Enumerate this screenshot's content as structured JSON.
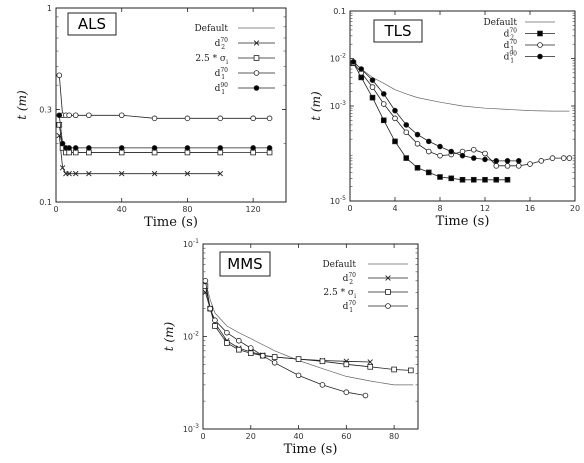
{
  "chart_data": [
    {
      "type": "line",
      "title": "ALS",
      "xlabel": "Time (s)",
      "ylabel": "t (m)",
      "yscale": "log",
      "xlim": [
        0,
        140
      ],
      "ylim": [
        0.1,
        1
      ],
      "xticks": [
        "0",
        "40",
        "80",
        "120"
      ],
      "yticks": [
        "0.1",
        "0.3",
        "1"
      ],
      "legend_position": "top-right",
      "series": [
        {
          "name": "Default",
          "marker": "none",
          "x": [
            2,
            4,
            6,
            10,
            20,
            40,
            60,
            80,
            100
          ],
          "y": [
            0.22,
            0.2,
            0.19,
            0.18,
            0.18,
            0.18,
            0.18,
            0.18,
            0.18
          ]
        },
        {
          "name": "d_2^70",
          "marker": "x",
          "x": [
            2,
            4,
            6,
            8,
            12,
            20,
            40,
            60,
            80,
            100
          ],
          "y": [
            0.22,
            0.15,
            0.14,
            0.14,
            0.14,
            0.14,
            0.14,
            0.14,
            0.14,
            0.14
          ]
        },
        {
          "name": "2.5 * σ_i",
          "marker": "square",
          "x": [
            2,
            4,
            6,
            8,
            12,
            20,
            40,
            60,
            80,
            100,
            120,
            130
          ],
          "y": [
            0.25,
            0.19,
            0.18,
            0.18,
            0.18,
            0.18,
            0.18,
            0.18,
            0.18,
            0.18,
            0.18,
            0.18
          ]
        },
        {
          "name": "d_1^70",
          "marker": "circle-open",
          "x": [
            2,
            4,
            6,
            8,
            12,
            20,
            40,
            60,
            80,
            100,
            120,
            130
          ],
          "y": [
            0.45,
            0.28,
            0.28,
            0.28,
            0.28,
            0.28,
            0.28,
            0.27,
            0.27,
            0.27,
            0.27,
            0.27
          ]
        },
        {
          "name": "d_1^90",
          "marker": "circle-filled",
          "x": [
            2,
            4,
            6,
            8,
            12,
            20,
            40,
            60,
            80,
            100,
            120,
            130
          ],
          "y": [
            0.28,
            0.2,
            0.19,
            0.19,
            0.19,
            0.19,
            0.19,
            0.19,
            0.19,
            0.19,
            0.19,
            0.19
          ]
        }
      ]
    },
    {
      "type": "line",
      "title": "TLS",
      "xlabel": "Time (s)",
      "ylabel": "t (m)",
      "yscale": "log",
      "xlim": [
        0,
        20
      ],
      "ylim": [
        1e-05,
        0.1
      ],
      "xticks": [
        "0",
        "4",
        "8",
        "12",
        "16",
        "20"
      ],
      "yticks": [
        "10^-5",
        "10^-3",
        "10^-2",
        "0.1"
      ],
      "legend_position": "top-right",
      "series": [
        {
          "name": "Default",
          "marker": "none",
          "x": [
            0.3,
            1,
            2,
            3,
            4,
            5,
            6,
            8,
            10,
            12,
            14,
            16,
            18,
            19.5
          ],
          "y": [
            0.0085,
            0.006,
            0.004,
            0.003,
            0.0022,
            0.0018,
            0.0015,
            0.0012,
            0.001,
            0.0009,
            0.00085,
            0.0008,
            0.00078,
            0.00078
          ]
        },
        {
          "name": "d_2^70",
          "marker": "square-filled",
          "x": [
            0.3,
            1,
            2,
            3,
            4,
            5,
            6,
            7,
            8,
            9,
            10,
            11,
            12,
            13,
            14
          ],
          "y": [
            0.008,
            0.004,
            0.0015,
            0.0005,
            0.00018,
            8e-05,
            5e-05,
            4e-05,
            3.2e-05,
            3e-05,
            2.8e-05,
            2.8e-05,
            2.8e-05,
            2.8e-05,
            2.8e-05
          ]
        },
        {
          "name": "d_1^70",
          "marker": "circle-open",
          "x": [
            0.3,
            1,
            2,
            3,
            4,
            5,
            6,
            7,
            8,
            9,
            10,
            11,
            12,
            13,
            14,
            15,
            16,
            17,
            18,
            19,
            19.5
          ],
          "y": [
            0.008,
            0.005,
            0.0025,
            0.0011,
            0.00055,
            0.00028,
            0.00016,
            0.00011,
            9e-05,
            9.5e-05,
            0.00011,
            0.00012,
            0.0001,
            5.5e-05,
            5.5e-05,
            5.5e-05,
            6e-05,
            7e-05,
            8e-05,
            8e-05,
            8e-05
          ]
        },
        {
          "name": "d_1^90",
          "marker": "circle-filled",
          "x": [
            0.3,
            1,
            2,
            3,
            4,
            5,
            6,
            7,
            8,
            9,
            10,
            11,
            12,
            13,
            14,
            15
          ],
          "y": [
            0.0085,
            0.006,
            0.0035,
            0.0018,
            0.0008,
            0.0004,
            0.00025,
            0.00018,
            0.00014,
            0.00011,
            9e-05,
            8e-05,
            7.5e-05,
            7e-05,
            7e-05,
            7e-05
          ]
        }
      ]
    },
    {
      "type": "line",
      "title": "MMS",
      "xlabel": "Time (s)",
      "ylabel": "t (m)",
      "yscale": "log",
      "xlim": [
        0,
        90
      ],
      "ylim": [
        0.001,
        0.1
      ],
      "xticks": [
        "0",
        "20",
        "40",
        "60",
        "80"
      ],
      "yticks": [
        "10^-3",
        "10^-2",
        "10^-1"
      ],
      "legend_position": "top-right",
      "series": [
        {
          "name": "Default",
          "marker": "none",
          "x": [
            1,
            3,
            5,
            10,
            15,
            20,
            30,
            40,
            50,
            60,
            70,
            80,
            88
          ],
          "y": [
            0.04,
            0.025,
            0.018,
            0.013,
            0.011,
            0.0095,
            0.007,
            0.0055,
            0.0045,
            0.0037,
            0.0033,
            0.003,
            0.003
          ]
        },
        {
          "name": "d_2^70",
          "marker": "x",
          "x": [
            1,
            3,
            5,
            10,
            15,
            20,
            25,
            30,
            40,
            50,
            60,
            70
          ],
          "y": [
            0.03,
            0.02,
            0.014,
            0.009,
            0.0075,
            0.0068,
            0.0063,
            0.006,
            0.0057,
            0.0055,
            0.0054,
            0.0053
          ]
        },
        {
          "name": "2.5 * σ_i",
          "marker": "square",
          "x": [
            1,
            3,
            5,
            10,
            15,
            20,
            25,
            30,
            40,
            50,
            60,
            70,
            80,
            87
          ],
          "y": [
            0.035,
            0.02,
            0.013,
            0.0085,
            0.0072,
            0.0066,
            0.0062,
            0.006,
            0.0057,
            0.0054,
            0.005,
            0.0047,
            0.0044,
            0.0043
          ]
        },
        {
          "name": "d_1^70",
          "marker": "circle-open",
          "x": [
            1,
            3,
            5,
            10,
            15,
            20,
            25,
            30,
            40,
            50,
            60,
            68
          ],
          "y": [
            0.04,
            0.02,
            0.015,
            0.011,
            0.009,
            0.0075,
            0.0062,
            0.0052,
            0.0038,
            0.003,
            0.0025,
            0.0023
          ]
        }
      ]
    }
  ]
}
